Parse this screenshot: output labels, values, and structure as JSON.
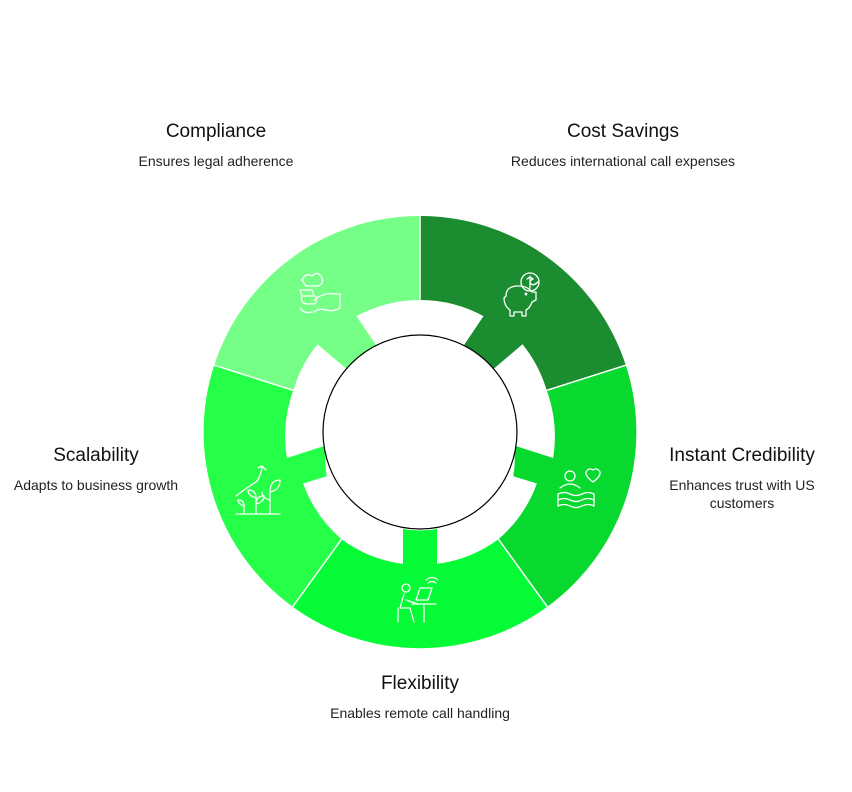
{
  "colors": {
    "compliance": "#76FF87",
    "cost_savings": "#1B8C2F",
    "instant_credibility": "#08D92F",
    "flexibility": "#05FB35",
    "scalability": "#25FF48",
    "icon_stroke": "#FFFFFF",
    "center_stroke": "#000000",
    "text": "#111111"
  },
  "segments": [
    {
      "id": "compliance",
      "title": "Compliance",
      "description": "Ensures legal adherence",
      "icon": "handshake-document-icon"
    },
    {
      "id": "cost_savings",
      "title": "Cost Savings",
      "description": "Reduces international call expenses",
      "icon": "piggy-bank-dollar-icon"
    },
    {
      "id": "instant_credibility",
      "title": "Instant Credibility",
      "description": "Enhances trust with US customers",
      "icon": "people-heart-icon"
    },
    {
      "id": "flexibility",
      "title": "Flexibility",
      "description": "Enables remote call handling",
      "icon": "person-laptop-wifi-icon"
    },
    {
      "id": "scalability",
      "title": "Scalability",
      "description": "Adapts to business growth",
      "icon": "growing-plants-icon"
    }
  ]
}
